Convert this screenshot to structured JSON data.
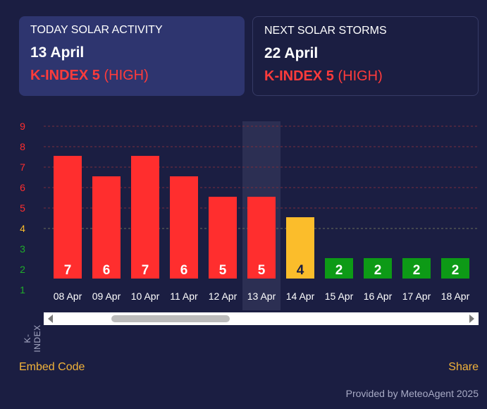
{
  "today": {
    "label": "TODAY SOLAR ACTIVITY",
    "date": "13 April",
    "kindex": "K-INDEX 5",
    "level": "(HIGH)"
  },
  "next": {
    "label": "NEXT SOLAR STORMS",
    "date": "22 April",
    "kindex": "K-INDEX 5",
    "level": "(HIGH)"
  },
  "colors": {
    "high": "#ff2e2e",
    "moderate": "#fbbd2b",
    "low": "#0d9a16",
    "highlight": "#2f3356",
    "card_bg": "#2e356f",
    "link": "#f2b33a"
  },
  "chart_data": {
    "type": "bar",
    "categories": [
      "08 Apr",
      "09 Apr",
      "10 Apr",
      "11 Apr",
      "12 Apr",
      "13 Apr",
      "14 Apr",
      "15 Apr",
      "16 Apr",
      "17 Apr",
      "18 Apr"
    ],
    "values": [
      7,
      6,
      7,
      6,
      5,
      5,
      4,
      2,
      2,
      2,
      2
    ],
    "highlighted_category": "13 Apr",
    "ylabel": "K-INDEX",
    "ylim": [
      1,
      9
    ],
    "yticks": [
      "1",
      "2",
      "3",
      "4",
      "5",
      "6",
      "7",
      "8",
      "9"
    ],
    "grid": true
  },
  "footer": {
    "embed": "Embed Code",
    "share": "Share",
    "provided": "Provided by MeteoAgent 2025"
  }
}
